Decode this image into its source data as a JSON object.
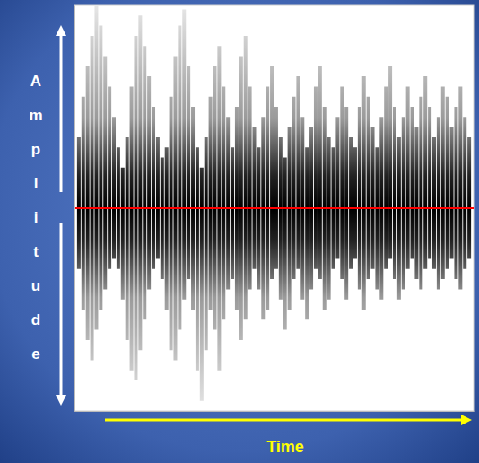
{
  "chart_data": {
    "type": "waveform",
    "xlabel": "Time",
    "ylabel": "Amplitude",
    "x": [
      0,
      1,
      2,
      3,
      4,
      5,
      6,
      7,
      8,
      9,
      10,
      11,
      12,
      13,
      14,
      15,
      16,
      17,
      18,
      19,
      20,
      21,
      22,
      23,
      24,
      25,
      26,
      27,
      28,
      29,
      30,
      31,
      32,
      33,
      34,
      35,
      36,
      37,
      38,
      39,
      40,
      41,
      42,
      43,
      44,
      45,
      46,
      47,
      48,
      49,
      50,
      51,
      52,
      53,
      54,
      55,
      56,
      57,
      58,
      59,
      60,
      61,
      62,
      63,
      64,
      65,
      66,
      67,
      68,
      69,
      70,
      71,
      72,
      73,
      74,
      75,
      76,
      77,
      78,
      79,
      80,
      81,
      82,
      83,
      84,
      85,
      86,
      87,
      88,
      89
    ],
    "values": [
      0.35,
      0.55,
      0.7,
      0.85,
      1.0,
      0.9,
      0.75,
      0.6,
      0.45,
      0.3,
      0.2,
      0.35,
      0.6,
      0.85,
      0.95,
      0.8,
      0.65,
      0.5,
      0.35,
      0.25,
      0.3,
      0.55,
      0.75,
      0.9,
      0.98,
      0.7,
      0.5,
      0.3,
      0.2,
      0.35,
      0.55,
      0.7,
      0.8,
      0.6,
      0.45,
      0.3,
      0.5,
      0.75,
      0.85,
      0.6,
      0.4,
      0.3,
      0.45,
      0.6,
      0.7,
      0.5,
      0.35,
      0.25,
      0.4,
      0.55,
      0.65,
      0.45,
      0.3,
      0.4,
      0.6,
      0.7,
      0.5,
      0.35,
      0.3,
      0.45,
      0.6,
      0.5,
      0.35,
      0.3,
      0.5,
      0.65,
      0.55,
      0.4,
      0.3,
      0.45,
      0.6,
      0.7,
      0.5,
      0.35,
      0.45,
      0.6,
      0.5,
      0.4,
      0.55,
      0.65,
      0.5,
      0.35,
      0.45,
      0.6,
      0.55,
      0.4,
      0.5,
      0.6,
      0.45,
      0.35
    ],
    "lower": [
      -0.3,
      -0.5,
      -0.65,
      -0.75,
      -0.6,
      -0.5,
      -0.4,
      -0.3,
      -0.25,
      -0.3,
      -0.45,
      -0.65,
      -0.8,
      -0.85,
      -0.7,
      -0.55,
      -0.4,
      -0.3,
      -0.25,
      -0.35,
      -0.5,
      -0.7,
      -0.75,
      -0.6,
      -0.45,
      -0.35,
      -0.5,
      -0.8,
      -0.95,
      -0.7,
      -0.5,
      -0.6,
      -0.8,
      -0.55,
      -0.4,
      -0.35,
      -0.5,
      -0.65,
      -0.55,
      -0.4,
      -0.3,
      -0.4,
      -0.55,
      -0.5,
      -0.35,
      -0.3,
      -0.45,
      -0.6,
      -0.5,
      -0.35,
      -0.3,
      -0.45,
      -0.55,
      -0.4,
      -0.3,
      -0.35,
      -0.5,
      -0.45,
      -0.3,
      -0.25,
      -0.35,
      -0.45,
      -0.3,
      -0.25,
      -0.4,
      -0.5,
      -0.35,
      -0.3,
      -0.4,
      -0.45,
      -0.3,
      -0.25,
      -0.35,
      -0.45,
      -0.4,
      -0.3,
      -0.25,
      -0.35,
      -0.4,
      -0.3,
      -0.25,
      -0.3,
      -0.4,
      -0.35,
      -0.3,
      -0.25,
      -0.35,
      -0.4,
      -0.3,
      -0.25
    ],
    "color": "#000000",
    "xlim": [
      -1,
      90
    ],
    "ylim": [
      -1,
      1
    ],
    "yticks": [
      0
    ],
    "grid": true,
    "tick_labels": false
  }
}
